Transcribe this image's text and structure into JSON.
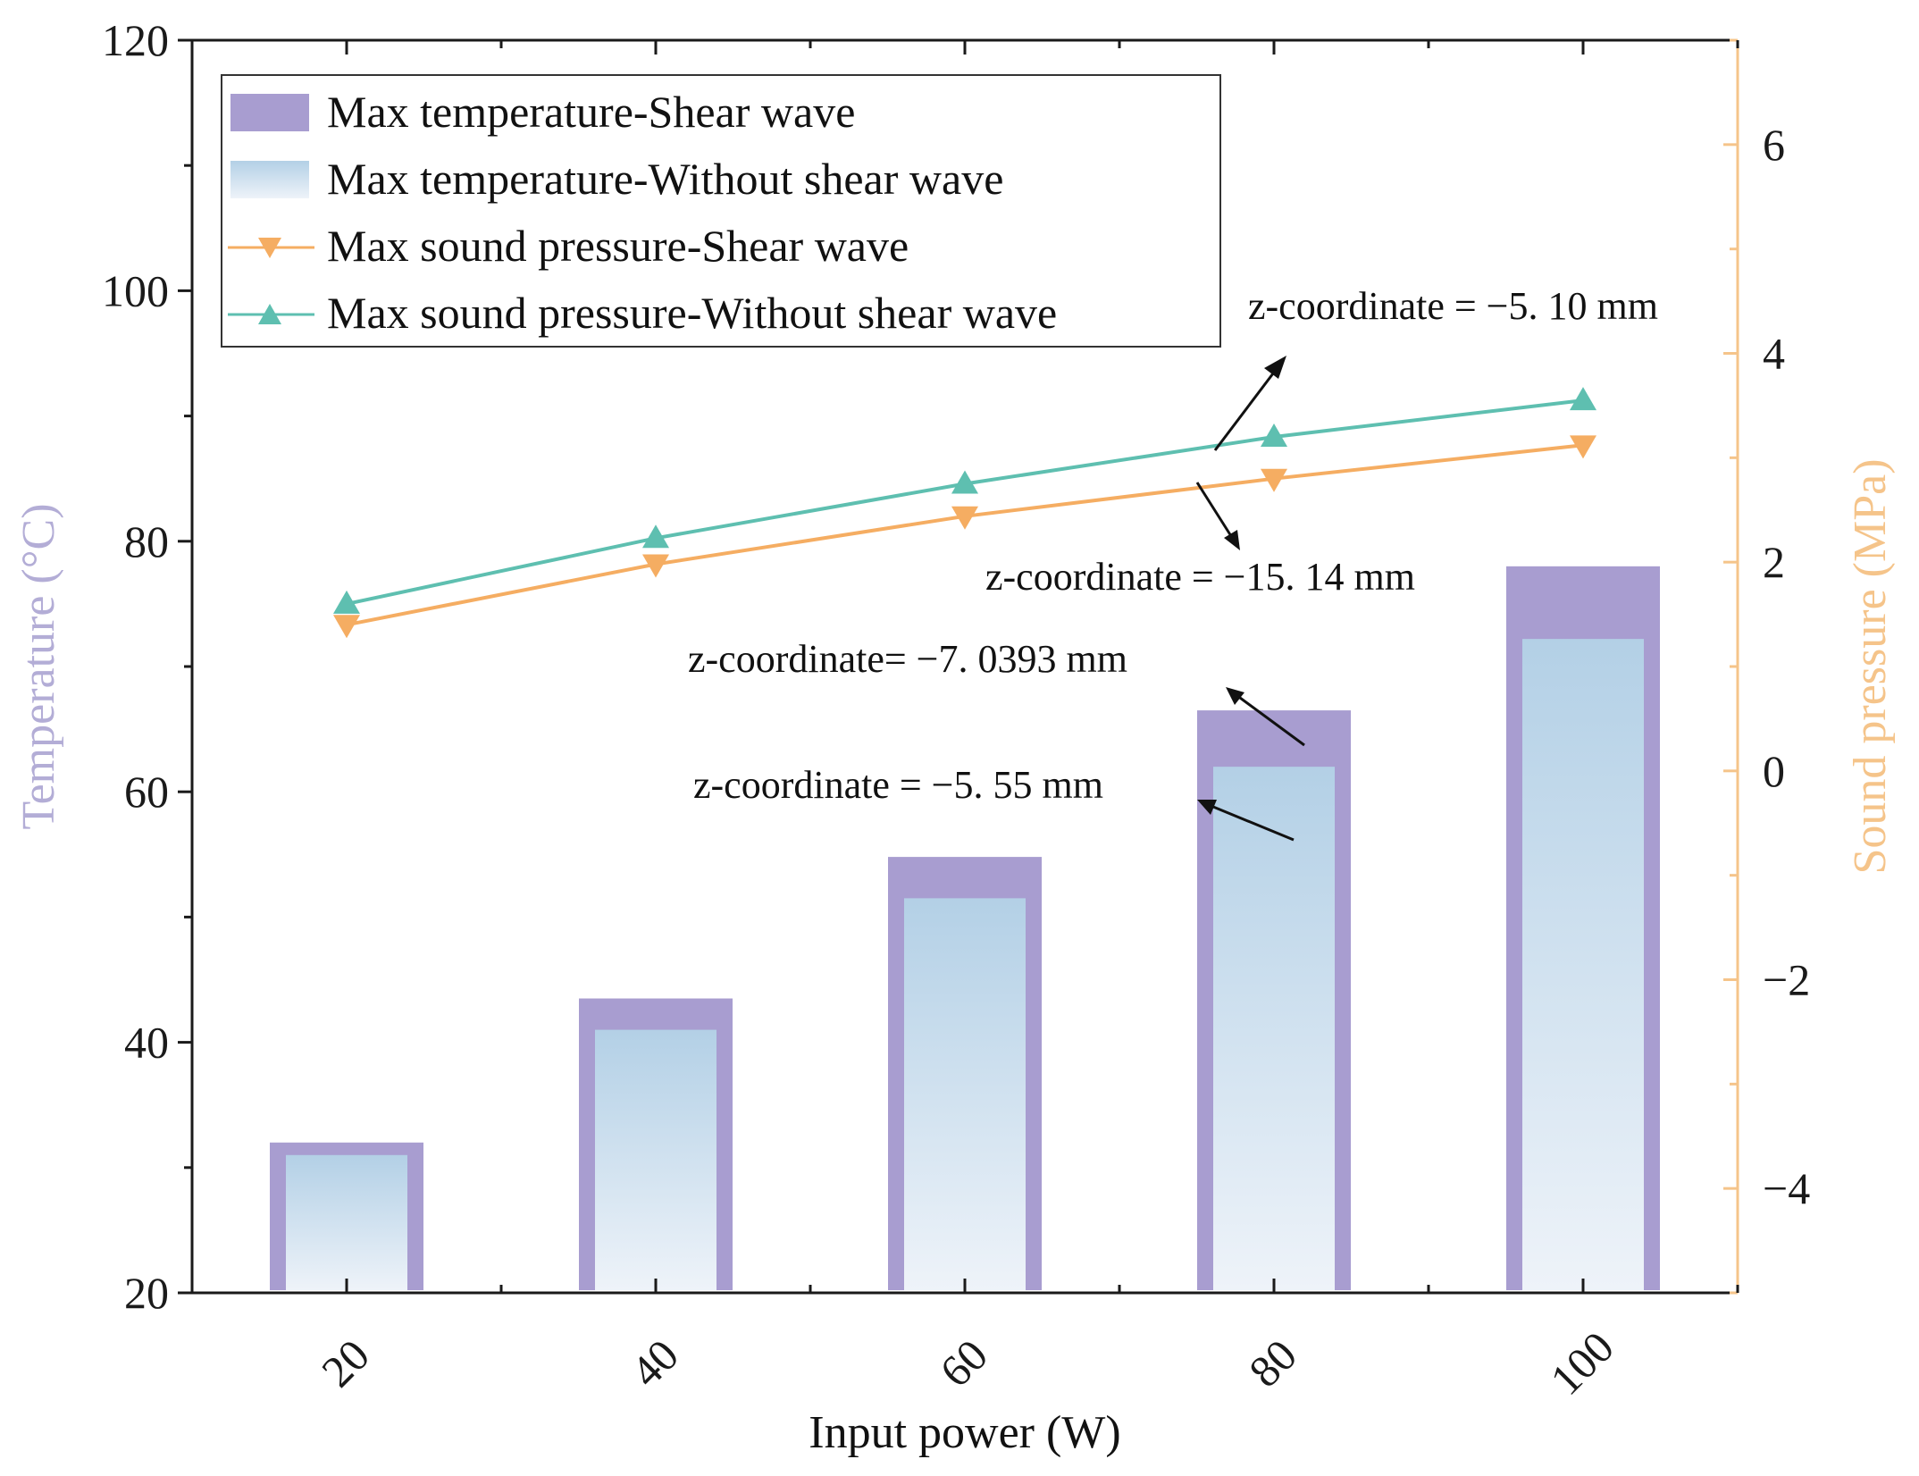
{
  "chart_data": {
    "type": "bar+line",
    "x_label": "Input power (W)",
    "y_left_label": "Temperature (°C)",
    "y_right_label": "Sound pressure (MPa)",
    "categories": [
      "20",
      "40",
      "60",
      "80",
      "100"
    ],
    "x_values": [
      20,
      40,
      60,
      80,
      100
    ],
    "x_range": [
      10,
      110
    ],
    "y_left_range": [
      20,
      120
    ],
    "y_left_ticks": [
      20,
      40,
      60,
      80,
      100,
      120
    ],
    "y_right_range": [
      -5,
      7
    ],
    "y_right_ticks": [
      -4,
      -2,
      0,
      2,
      4,
      6
    ],
    "y_right_tick_labels": [
      "−4",
      "−2",
      "0",
      "2",
      "4",
      "6"
    ],
    "bar_series": [
      {
        "name": "Max temperature-Shear wave",
        "axis": "left",
        "color": "#a89dd0",
        "values": [
          32,
          43.5,
          54.8,
          66.5,
          78
        ]
      },
      {
        "name": "Max temperature-Without shear wave",
        "axis": "left",
        "color": "#b8d4e8",
        "values": [
          31,
          41,
          51.5,
          62,
          72.2
        ]
      }
    ],
    "line_series": [
      {
        "name": "Max sound pressure-Shear wave",
        "axis": "right",
        "color": "#f5ad62",
        "marker": "triangle-down",
        "values": [
          1.4,
          1.98,
          2.44,
          2.8,
          3.12
        ]
      },
      {
        "name": "Max sound pressure-Without shear wave",
        "axis": "right",
        "color": "#5ebfb0",
        "marker": "triangle-up",
        "values": [
          1.6,
          2.23,
          2.75,
          3.2,
          3.55
        ]
      }
    ],
    "legend_position": "top-left",
    "grid": false,
    "colors": {
      "left_axis_title": "#b3add6",
      "right_axis": "#f5c48a",
      "right_axis_title": "#f5c48a",
      "axes": "#1a1a1a"
    },
    "annotations": [
      {
        "text": "z-coordinate = −5. 10 mm",
        "target": "Max sound pressure-Without shear wave"
      },
      {
        "text": "z-coordinate = −15. 14 mm",
        "target": "Max sound pressure-Shear wave"
      },
      {
        "text": "z-coordinate= −7. 0393 mm",
        "target": "Max temperature-Shear wave"
      },
      {
        "text": "z-coordinate = −5. 55 mm",
        "target": "Max temperature-Without shear wave"
      }
    ]
  }
}
